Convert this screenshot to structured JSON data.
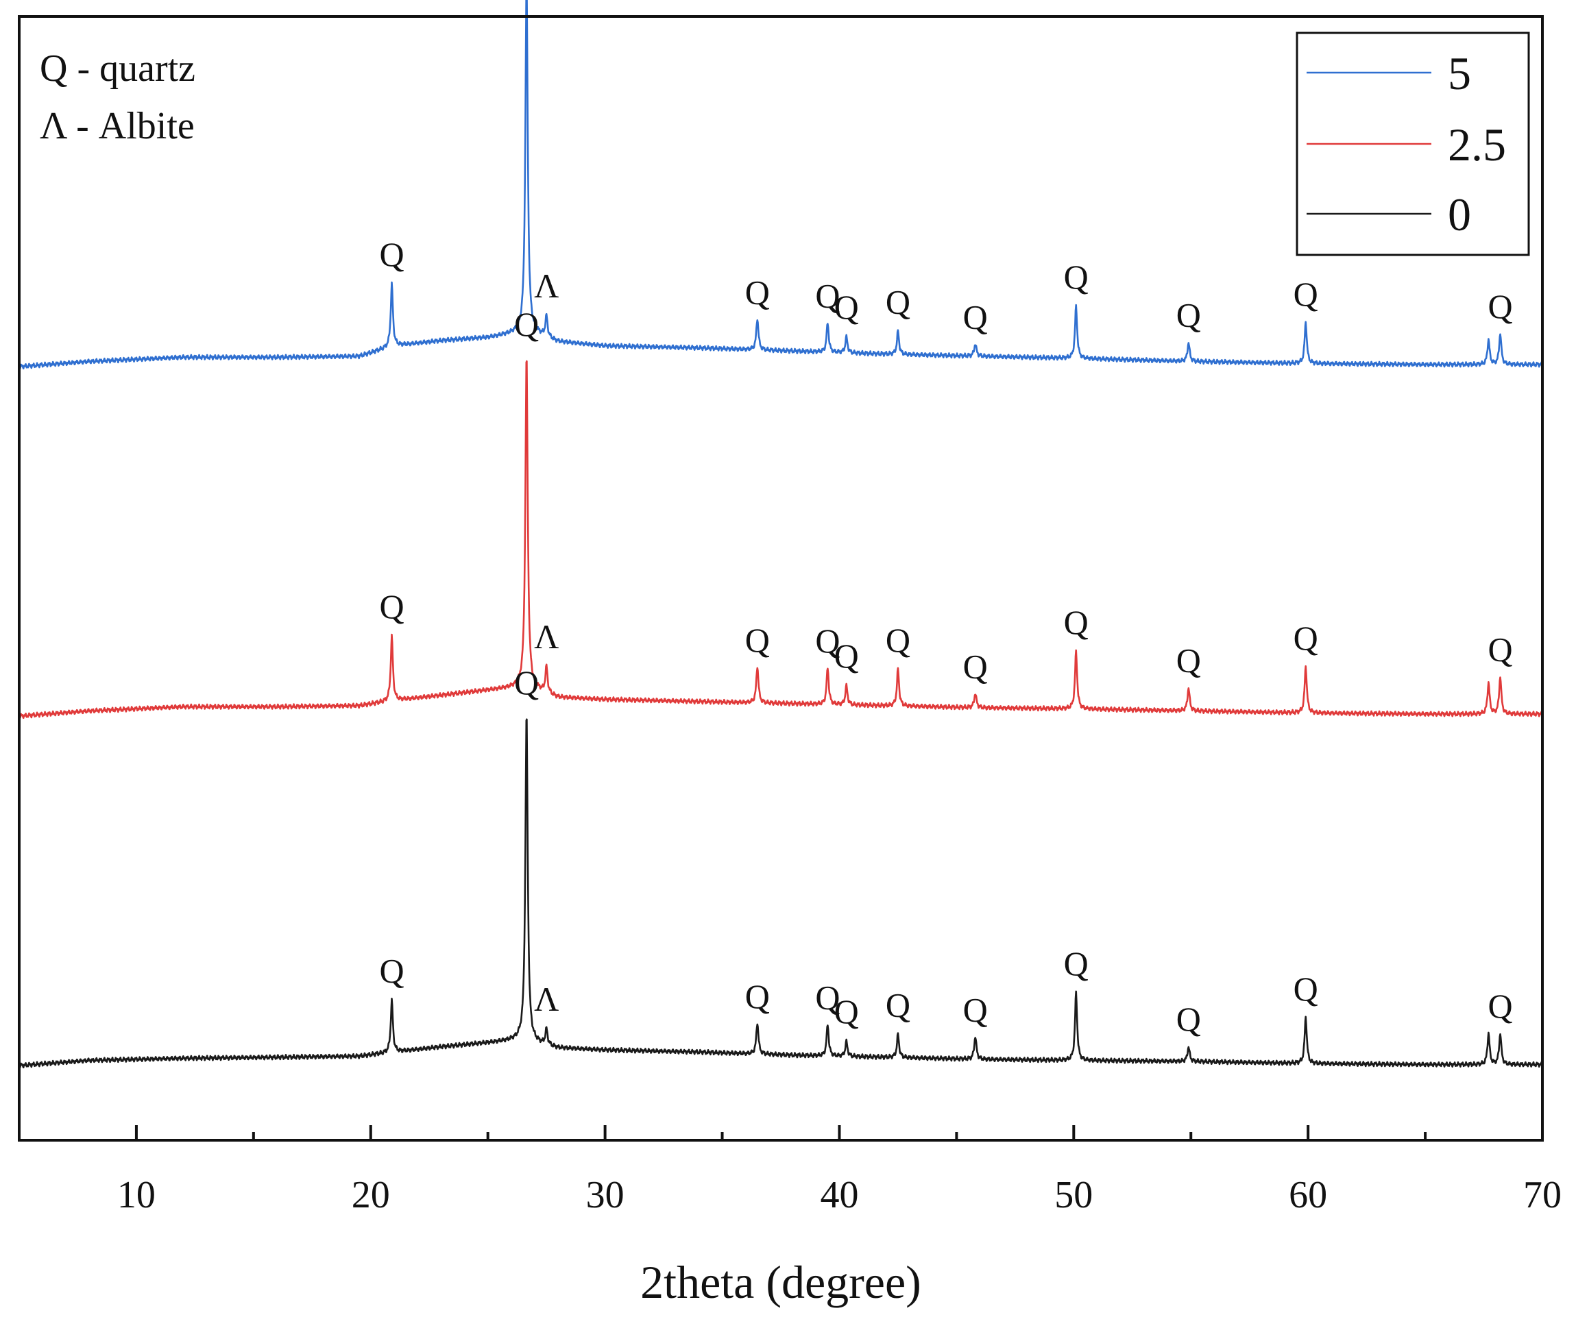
{
  "chart_data": {
    "type": "line",
    "title": "",
    "xlabel": "2theta (degree)",
    "ylabel": "",
    "xlim": [
      5,
      70
    ],
    "xticks": [
      10,
      20,
      30,
      40,
      50,
      60,
      70
    ],
    "y_ticks_shown": false,
    "grid": false,
    "legend_position": "top-right",
    "phase_key": [
      {
        "symbol": "Q",
        "text": "Q - quartz"
      },
      {
        "symbol": "Λ",
        "text": "Λ - Albite"
      }
    ],
    "series": [
      {
        "name": "5",
        "color": "#2f6fd0",
        "offset": 2,
        "background": [
          [
            5,
            0.0
          ],
          [
            8,
            0.05
          ],
          [
            12,
            0.09
          ],
          [
            16,
            0.09
          ],
          [
            19.5,
            0.1
          ],
          [
            21,
            0.2
          ],
          [
            23,
            0.25
          ],
          [
            25,
            0.28
          ],
          [
            26.4,
            0.33
          ],
          [
            27,
            0.32
          ],
          [
            28,
            0.24
          ],
          [
            30,
            0.2
          ],
          [
            34,
            0.18
          ],
          [
            38,
            0.15
          ],
          [
            42,
            0.12
          ],
          [
            46,
            0.1
          ],
          [
            50,
            0.08
          ],
          [
            55,
            0.05
          ],
          [
            60,
            0.03
          ],
          [
            65,
            0.02
          ],
          [
            70,
            0.02
          ]
        ],
        "peaks": [
          {
            "x": 20.9,
            "h": 0.6,
            "label": "Q"
          },
          {
            "x": 26.65,
            "h": 3.4,
            "label": "Q"
          },
          {
            "x": 27.5,
            "h": 0.2,
            "label": "Λ"
          },
          {
            "x": 36.5,
            "h": 0.3,
            "label": "Q"
          },
          {
            "x": 39.5,
            "h": 0.28,
            "label": "Q"
          },
          {
            "x": 40.3,
            "h": 0.15,
            "label": "Q"
          },
          {
            "x": 42.5,
            "h": 0.22,
            "label": "Q"
          },
          {
            "x": 45.8,
            "h": 0.12,
            "label": "Q"
          },
          {
            "x": 50.1,
            "h": 0.5,
            "label": "Q"
          },
          {
            "x": 54.9,
            "h": 0.18,
            "label": "Q"
          },
          {
            "x": 59.9,
            "h": 0.4,
            "label": "Q"
          },
          {
            "x": 67.7,
            "h": 0.24,
            "label": ""
          },
          {
            "x": 68.2,
            "h": 0.3,
            "label": "Q"
          }
        ]
      },
      {
        "name": "2.5",
        "color": "#e03a3a",
        "offset": 1,
        "background": [
          [
            5,
            0.0
          ],
          [
            8,
            0.05
          ],
          [
            12,
            0.09
          ],
          [
            16,
            0.09
          ],
          [
            19.5,
            0.1
          ],
          [
            21,
            0.15
          ],
          [
            23,
            0.2
          ],
          [
            25,
            0.25
          ],
          [
            26.4,
            0.28
          ],
          [
            27,
            0.26
          ],
          [
            28,
            0.18
          ],
          [
            30,
            0.16
          ],
          [
            34,
            0.14
          ],
          [
            38,
            0.12
          ],
          [
            42,
            0.1
          ],
          [
            46,
            0.08
          ],
          [
            50,
            0.07
          ],
          [
            55,
            0.05
          ],
          [
            60,
            0.03
          ],
          [
            65,
            0.02
          ],
          [
            70,
            0.02
          ]
        ],
        "peaks": [
          {
            "x": 20.9,
            "h": 0.62,
            "label": "Q"
          },
          {
            "x": 26.65,
            "h": 3.2,
            "label": "Q"
          },
          {
            "x": 27.5,
            "h": 0.25,
            "label": "Λ"
          },
          {
            "x": 36.5,
            "h": 0.35,
            "label": "Q"
          },
          {
            "x": 39.5,
            "h": 0.35,
            "label": "Q"
          },
          {
            "x": 40.3,
            "h": 0.18,
            "label": "Q"
          },
          {
            "x": 42.5,
            "h": 0.35,
            "label": "Q"
          },
          {
            "x": 45.8,
            "h": 0.14,
            "label": "Q"
          },
          {
            "x": 50.1,
            "h": 0.55,
            "label": "Q"
          },
          {
            "x": 54.9,
            "h": 0.22,
            "label": "Q"
          },
          {
            "x": 59.9,
            "h": 0.45,
            "label": "Q"
          },
          {
            "x": 67.7,
            "h": 0.3,
            "label": ""
          },
          {
            "x": 68.2,
            "h": 0.36,
            "label": "Q"
          }
        ]
      },
      {
        "name": "0",
        "color": "#1a1a1a",
        "offset": 0,
        "background": [
          [
            5,
            0.0
          ],
          [
            8,
            0.05
          ],
          [
            12,
            0.07
          ],
          [
            16,
            0.08
          ],
          [
            19.5,
            0.09
          ],
          [
            21,
            0.13
          ],
          [
            23,
            0.18
          ],
          [
            25,
            0.22
          ],
          [
            26.4,
            0.25
          ],
          [
            27,
            0.22
          ],
          [
            28,
            0.17
          ],
          [
            30,
            0.15
          ],
          [
            34,
            0.13
          ],
          [
            38,
            0.1
          ],
          [
            42,
            0.08
          ],
          [
            46,
            0.06
          ],
          [
            50,
            0.05
          ],
          [
            55,
            0.04
          ],
          [
            60,
            0.02
          ],
          [
            65,
            0.01
          ],
          [
            70,
            0.01
          ]
        ],
        "peaks": [
          {
            "x": 20.9,
            "h": 0.5,
            "label": "Q"
          },
          {
            "x": 26.65,
            "h": 3.15,
            "label": "Q"
          },
          {
            "x": 27.5,
            "h": 0.15,
            "label": "Λ"
          },
          {
            "x": 36.5,
            "h": 0.3,
            "label": "Q"
          },
          {
            "x": 39.5,
            "h": 0.3,
            "label": "Q"
          },
          {
            "x": 40.3,
            "h": 0.14,
            "label": "Q"
          },
          {
            "x": 42.5,
            "h": 0.22,
            "label": "Q"
          },
          {
            "x": 45.8,
            "h": 0.22,
            "label": "Q"
          },
          {
            "x": 50.1,
            "h": 0.65,
            "label": "Q"
          },
          {
            "x": 54.9,
            "h": 0.14,
            "label": "Q"
          },
          {
            "x": 59.9,
            "h": 0.45,
            "label": "Q"
          },
          {
            "x": 67.7,
            "h": 0.3,
            "label": ""
          },
          {
            "x": 68.2,
            "h": 0.3,
            "label": "Q"
          }
        ]
      }
    ]
  }
}
